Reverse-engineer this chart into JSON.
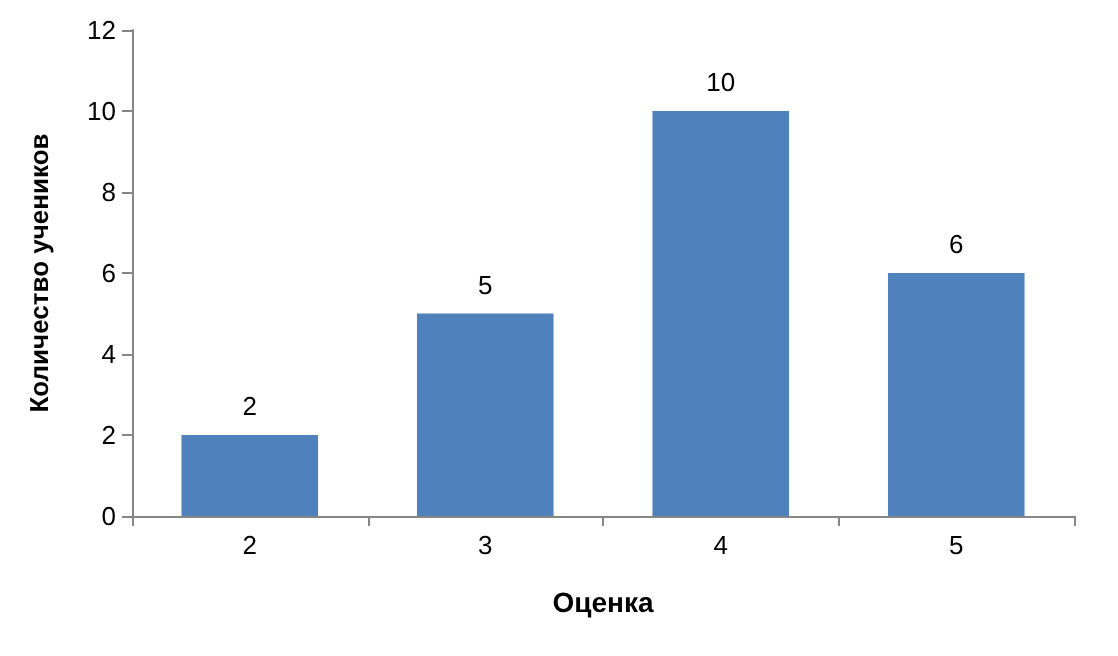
{
  "chart_data": {
    "type": "bar",
    "xlabel": "Оценка",
    "ylabel": "Количество учеников",
    "categories": [
      "2",
      "3",
      "4",
      "5"
    ],
    "values": [
      2,
      5,
      10,
      6
    ],
    "color": "#4f81bd",
    "ylim": [
      0,
      12
    ],
    "yticks": [
      0,
      2,
      4,
      6,
      8,
      10,
      12
    ],
    "grid": false,
    "data_labels": true
  }
}
